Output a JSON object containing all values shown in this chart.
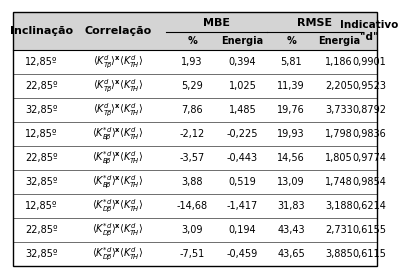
{
  "rows": [
    [
      "12,85º",
      "1,93",
      "0,394",
      "5,81",
      "1,186",
      "0,9901"
    ],
    [
      "22,85º",
      "5,29",
      "1,025",
      "11,39",
      "2,205",
      "0,9523"
    ],
    [
      "32,85º",
      "7,86",
      "1,485",
      "19,76",
      "3,733",
      "0,8792"
    ],
    [
      "12,85º",
      "-2,12",
      "-0,225",
      "19,93",
      "1,798",
      "0,9836"
    ],
    [
      "22,85º",
      "-3,57",
      "-0,443",
      "14,56",
      "1,805",
      "0,9774"
    ],
    [
      "32,85º",
      "3,88",
      "0,519",
      "13,09",
      "1,748",
      "0,9854"
    ],
    [
      "12,85º",
      "-14,68",
      "-1,417",
      "31,83",
      "3,188",
      "0,6214"
    ],
    [
      "22,85º",
      "3,09",
      "0,194",
      "43,43",
      "2,731",
      "0,6155"
    ],
    [
      "32,85º",
      "-7,51",
      "-0,459",
      "43,65",
      "3,885",
      "0,6115"
    ]
  ],
  "corr_type": [
    "T",
    "T",
    "T",
    "B",
    "B",
    "B",
    "D",
    "D",
    "D"
  ],
  "bg_color": "#ffffff",
  "header_bg": "#d4d4d4",
  "font_size": 7.0,
  "header_font_size": 8.0
}
